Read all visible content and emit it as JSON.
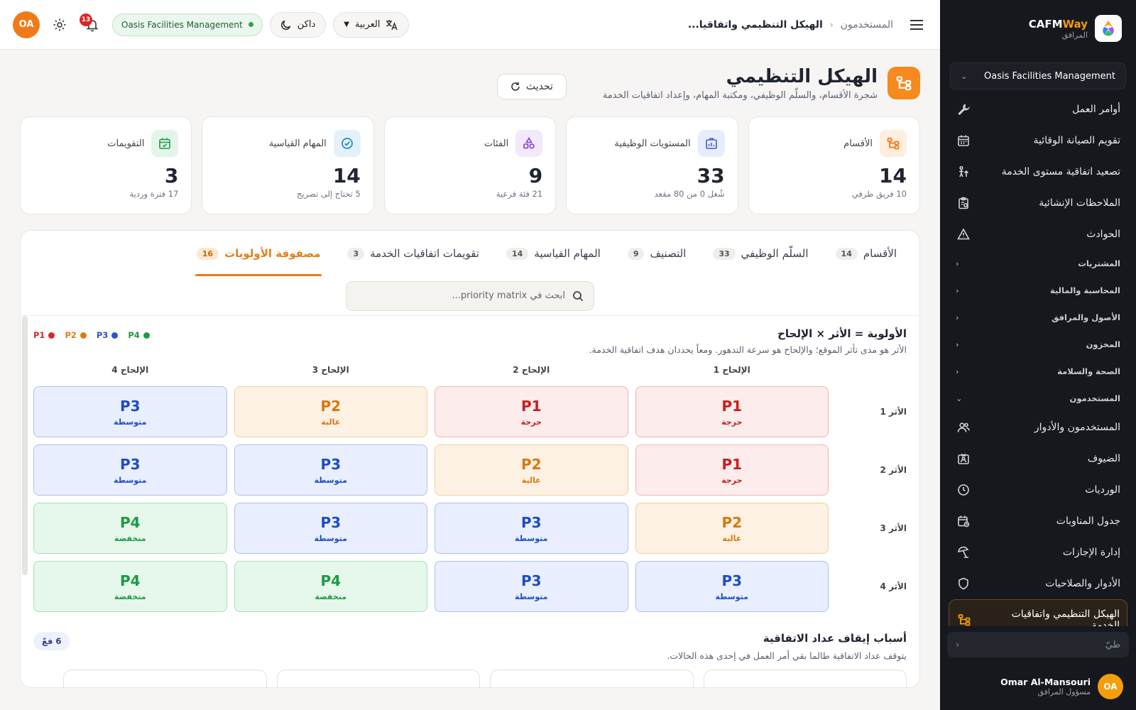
{
  "sidebar": {
    "brand": {
      "name_main": "CAFM",
      "name_accent": "Way",
      "subtitle": "المرافق"
    },
    "org_select": "Oasis Facilities Management",
    "items_top": [
      {
        "label": "أوامر العمل",
        "icon": "wrench-icon"
      },
      {
        "label": "تقويم الصيانة الوقائية",
        "icon": "calendar-icon"
      },
      {
        "label": "تصعيد اتفاقية مستوى الخدمة",
        "icon": "escalation-icon"
      },
      {
        "label": "الملاحظات الإنشائية",
        "icon": "clipboard-icon"
      },
      {
        "label": "الحوادث",
        "icon": "warning-icon"
      }
    ],
    "groups": [
      {
        "label": "المشتريات"
      },
      {
        "label": "المحاسبة والمالية"
      },
      {
        "label": "الأصول والمرافق"
      },
      {
        "label": "المخزون"
      },
      {
        "label": "الصحة والسلامة"
      }
    ],
    "users_group": "المستخدمون",
    "items_users": [
      {
        "label": "المستخدمون والأدوار",
        "icon": "users-icon"
      },
      {
        "label": "الضيوف",
        "icon": "guest-badge-icon"
      },
      {
        "label": "الورديات",
        "icon": "clock-icon"
      },
      {
        "label": "جدول المناوبات",
        "icon": "schedule-icon"
      },
      {
        "label": "إدارة الإجازات",
        "icon": "leave-icon"
      },
      {
        "label": "الأدوار والصلاحيات",
        "icon": "shield-icon"
      }
    ],
    "active_item": {
      "label": "الهيكل التنظيمي واتفاقيات الخدمة",
      "icon": "org-structure-icon"
    },
    "search_placeholder": "طيّ",
    "user": {
      "initials": "OA",
      "name": "Omar Al-Mansouri",
      "role": "مسؤول المرافق"
    }
  },
  "topbar": {
    "breadcrumb_parent": "المستخدمون",
    "breadcrumb_current": "الهيكل التنظيمي واتفاقيا...",
    "language": "العربية",
    "theme": "داكن",
    "org_badge": "Oasis Facilities Management",
    "notifications": "13",
    "avatar": "OA"
  },
  "page": {
    "title": "الهيكل التنظيمي",
    "subtitle": "شجرة الأقسام، والسلّم الوظيفي، ومكتبة المهام، وإعداد اتفاقيات الخدمة",
    "refresh": "تحديث"
  },
  "stats": [
    {
      "label": "الأقسام",
      "value": "14",
      "sub": "10 فريق طرفي",
      "icon": "departments-icon",
      "color": "#f07a1a",
      "bg": "#fdeedd"
    },
    {
      "label": "المستويات الوظيفية",
      "value": "33",
      "sub": "شُغل 0 من 80 مقعد",
      "icon": "job-levels-icon",
      "color": "#3b5bdb",
      "bg": "#e8edfc"
    },
    {
      "label": "الفئات",
      "value": "9",
      "sub": "21 فئة فرعية",
      "icon": "categories-icon",
      "color": "#8b3fd6",
      "bg": "#f2e9fc"
    },
    {
      "label": "المهام القياسية",
      "value": "14",
      "sub": "5 تحتاج إلى تصريح",
      "icon": "tasks-icon",
      "color": "#1e88c8",
      "bg": "#e3f2fa"
    },
    {
      "label": "التقويمات",
      "value": "3",
      "sub": "17 فترة وردية",
      "icon": "calendars-icon",
      "color": "#1c9a45",
      "bg": "#e3f5e9"
    }
  ],
  "tabs": [
    {
      "label": "الأقسام",
      "count": "14"
    },
    {
      "label": "السلّم الوظيفي",
      "count": "33"
    },
    {
      "label": "التصنيف",
      "count": "9"
    },
    {
      "label": "المهام القياسية",
      "count": "14"
    },
    {
      "label": "تقويمات اتفاقيات الخدمة",
      "count": "3"
    },
    {
      "label": "مصفوفة الأولويات",
      "count": "16",
      "active": true
    }
  ],
  "search": {
    "placeholder": "ابحث في priority matrix..."
  },
  "matrix": {
    "title": "الأولوية = الأثر × الإلحاح",
    "description": "الأثر هو مدى تأثر الموقع؛ والإلحاح هو سرعة التدهور. ومعاً يحددان هدف اتفاقية الخدمة.",
    "legend": [
      {
        "label": "P1",
        "color": "#dc2626"
      },
      {
        "label": "P2",
        "color": "#e07b12"
      },
      {
        "label": "P3",
        "color": "#2b55d6"
      },
      {
        "label": "P4",
        "color": "#1c9a45"
      }
    ],
    "columns": [
      "الإلحاح 1",
      "الإلحاح 2",
      "الإلحاح 3",
      "الإلحاح 4"
    ],
    "rows": [
      {
        "label": "الأثر 1",
        "cells": [
          {
            "code": "P1",
            "level": "حرجة",
            "cls": "p1"
          },
          {
            "code": "P1",
            "level": "حرجة",
            "cls": "p1"
          },
          {
            "code": "P2",
            "level": "عالية",
            "cls": "p2"
          },
          {
            "code": "P3",
            "level": "متوسطة",
            "cls": "p3"
          }
        ]
      },
      {
        "label": "الأثر 2",
        "cells": [
          {
            "code": "P1",
            "level": "حرجة",
            "cls": "p1"
          },
          {
            "code": "P2",
            "level": "عالية",
            "cls": "p2"
          },
          {
            "code": "P3",
            "level": "متوسطة",
            "cls": "p3"
          },
          {
            "code": "P3",
            "level": "متوسطة",
            "cls": "p3"
          }
        ]
      },
      {
        "label": "الأثر 3",
        "cells": [
          {
            "code": "P2",
            "level": "عالية",
            "cls": "p2"
          },
          {
            "code": "P3",
            "level": "متوسطة",
            "cls": "p3"
          },
          {
            "code": "P3",
            "level": "متوسطة",
            "cls": "p3"
          },
          {
            "code": "P4",
            "level": "منخفضة",
            "cls": "p4"
          }
        ]
      },
      {
        "label": "الأثر 4",
        "cells": [
          {
            "code": "P3",
            "level": "متوسطة",
            "cls": "p3"
          },
          {
            "code": "P3",
            "level": "متوسطة",
            "cls": "p3"
          },
          {
            "code": "P4",
            "level": "منخفضة",
            "cls": "p4"
          },
          {
            "code": "P4",
            "level": "منخفضة",
            "cls": "p4"
          }
        ]
      }
    ]
  },
  "reasons": {
    "title": "أسباب إيقاف عداد الاتفاقية",
    "description": "يتوقف عداد الاتفاقية طالما بقي أمر العمل في إحدى هذه الحالات.",
    "badge": "6 فعّ"
  }
}
